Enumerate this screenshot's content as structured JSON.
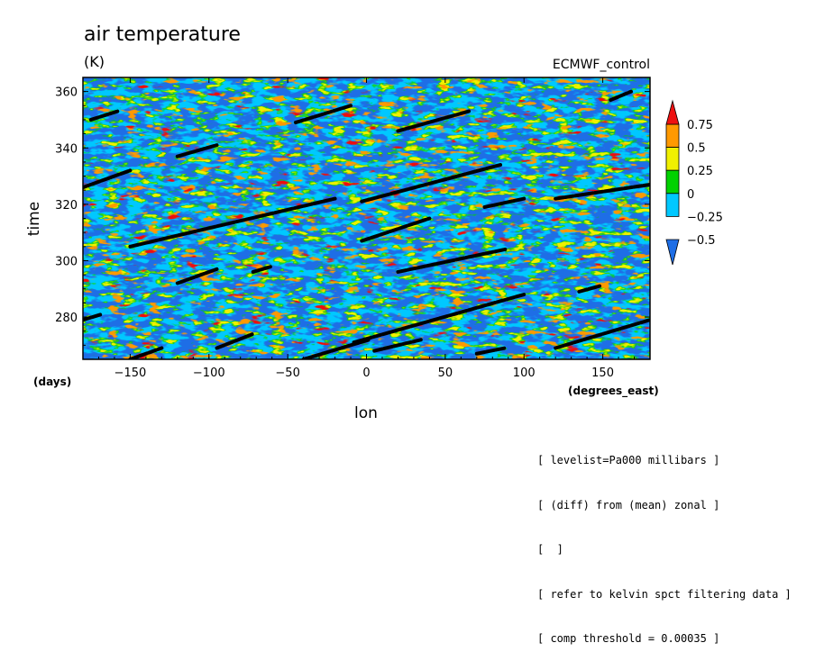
{
  "chart_data": {
    "type": "heatmap",
    "title": "air temperature",
    "subtitle": "(K)",
    "source_label": "ECMWF_control",
    "xlabel": "lon",
    "ylabel": "time",
    "x_unit_label": "(degrees_east)",
    "y_unit_label": "(days)",
    "xlim": [
      -180,
      180
    ],
    "ylim": [
      265,
      365
    ],
    "x_ticks": [
      -150,
      -100,
      -50,
      0,
      50,
      100,
      150
    ],
    "x_tick_labels": [
      "−150",
      "−100",
      "−50",
      "0",
      "50",
      "100",
      "150"
    ],
    "y_ticks": [
      280,
      300,
      320,
      340,
      360
    ],
    "y_tick_labels": [
      "280",
      "300",
      "320",
      "340",
      "360"
    ],
    "colorbar": {
      "levels": [
        -0.5,
        -0.25,
        0,
        0.25,
        0.5,
        0.75
      ],
      "level_labels": [
        "−0.5",
        "−0.25",
        "0",
        "0.25",
        "0.5",
        "0.75"
      ],
      "colors": [
        "#1e6ee6",
        "#00c8ff",
        "#00d200",
        "#f0f000",
        "#ff9900",
        "#ee1111"
      ]
    },
    "kelvin_tracks": [
      {
        "lon0": -175,
        "time0": 350,
        "lon1": -158,
        "time1": 353
      },
      {
        "lon0": -180,
        "time0": 326,
        "lon1": -150,
        "time1": 332
      },
      {
        "lon0": -120,
        "time0": 337,
        "lon1": -95,
        "time1": 341
      },
      {
        "lon0": -45,
        "time0": 349,
        "lon1": -10,
        "time1": 355
      },
      {
        "lon0": 20,
        "time0": 346,
        "lon1": 65,
        "time1": 353
      },
      {
        "lon0": 155,
        "time0": 357,
        "lon1": 168,
        "time1": 360
      },
      {
        "lon0": -150,
        "time0": 305,
        "lon1": -20,
        "time1": 322
      },
      {
        "lon0": -3,
        "time0": 321,
        "lon1": 85,
        "time1": 334
      },
      {
        "lon0": 75,
        "time0": 319,
        "lon1": 100,
        "time1": 322
      },
      {
        "lon0": 120,
        "time0": 322,
        "lon1": 180,
        "time1": 327
      },
      {
        "lon0": -3,
        "time0": 307,
        "lon1": 40,
        "time1": 315
      },
      {
        "lon0": -120,
        "time0": 292,
        "lon1": -95,
        "time1": 297
      },
      {
        "lon0": -72,
        "time0": 296,
        "lon1": -60,
        "time1": 298
      },
      {
        "lon0": 20,
        "time0": 296,
        "lon1": 88,
        "time1": 304
      },
      {
        "lon0": 135,
        "time0": 289,
        "lon1": 148,
        "time1": 291
      },
      {
        "lon0": -180,
        "time0": 279,
        "lon1": -168,
        "time1": 281
      },
      {
        "lon0": -150,
        "time0": 265,
        "lon1": -130,
        "time1": 269
      },
      {
        "lon0": -95,
        "time0": 269,
        "lon1": -72,
        "time1": 274
      },
      {
        "lon0": -40,
        "time0": 265,
        "lon1": 2,
        "time1": 272
      },
      {
        "lon0": -8,
        "time0": 271,
        "lon1": 100,
        "time1": 288
      },
      {
        "lon0": 5,
        "time0": 268,
        "lon1": 35,
        "time1": 272
      },
      {
        "lon0": 70,
        "time0": 267,
        "lon1": 88,
        "time1": 269
      },
      {
        "lon0": 120,
        "time0": 269,
        "lon1": 180,
        "time1": 279
      }
    ]
  },
  "notes": [
    "[ levelist=Pa000 millibars ]",
    "[ (diff) from (mean) zonal ]",
    "[  ]",
    "[ refer to kelvin spct filtering data ]",
    "[ comp threshold = 0.00035 ]"
  ]
}
